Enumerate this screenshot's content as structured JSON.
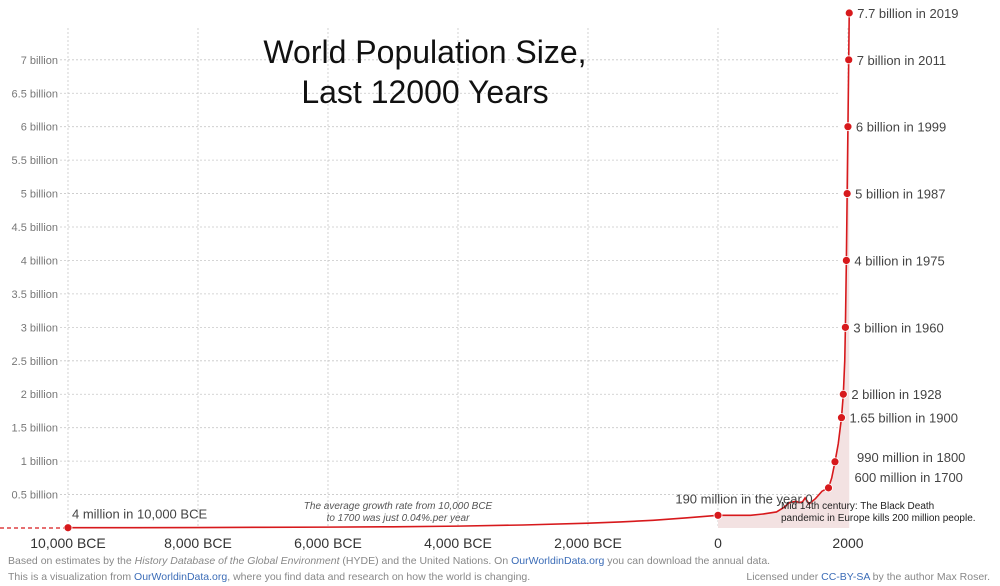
{
  "chart_data": {
    "type": "line",
    "title_lines": [
      "World Population Size,",
      "Last 12000 Years"
    ],
    "xlim": [
      -10400,
      2019
    ],
    "ylim": [
      0,
      7.7
    ],
    "x_ticks": [
      {
        "value": -10000,
        "label": "10,000 BCE"
      },
      {
        "value": -8000,
        "label": "8,000 BCE"
      },
      {
        "value": -6000,
        "label": "6,000 BCE"
      },
      {
        "value": -4000,
        "label": "4,000 BCE"
      },
      {
        "value": -2000,
        "label": "2,000 BCE"
      },
      {
        "value": 0,
        "label": "0"
      },
      {
        "value": 2000,
        "label": "2000"
      }
    ],
    "y_ticks": [
      {
        "value": 0.5,
        "label": "0.5 billion"
      },
      {
        "value": 1,
        "label": "1 billion"
      },
      {
        "value": 1.5,
        "label": "1.5 billion"
      },
      {
        "value": 2,
        "label": "2 billion"
      },
      {
        "value": 2.5,
        "label": "2.5 billion"
      },
      {
        "value": 3,
        "label": "3 billion"
      },
      {
        "value": 3.5,
        "label": "3.5  billion"
      },
      {
        "value": 4,
        "label": "4 billion"
      },
      {
        "value": 4.5,
        "label": "4.5 billion"
      },
      {
        "value": 5,
        "label": "5 billion"
      },
      {
        "value": 5.5,
        "label": "5.5 billion"
      },
      {
        "value": 6,
        "label": "6 billion"
      },
      {
        "value": 6.5,
        "label": "6.5 billion"
      },
      {
        "value": 7,
        "label": "7 billion"
      }
    ],
    "series": [
      {
        "color": "#d7191c",
        "x": [
          -10000,
          -9000,
          -8000,
          -7000,
          -6000,
          -5000,
          -4000,
          -3000,
          -2000,
          -1500,
          -1000,
          -500,
          0,
          500,
          700,
          900,
          1000,
          1100,
          1200,
          1250,
          1300,
          1340,
          1400,
          1500,
          1600,
          1700,
          1750,
          1800,
          1850,
          1900,
          1928,
          1950,
          1960,
          1975,
          1987,
          1999,
          2011,
          2019
        ],
        "y": [
          0.004,
          0.005,
          0.007,
          0.01,
          0.013,
          0.018,
          0.028,
          0.045,
          0.072,
          0.09,
          0.115,
          0.15,
          0.19,
          0.19,
          0.21,
          0.24,
          0.3,
          0.38,
          0.4,
          0.38,
          0.39,
          0.45,
          0.36,
          0.44,
          0.55,
          0.6,
          0.75,
          0.99,
          1.26,
          1.65,
          2.0,
          2.5,
          3.0,
          4.0,
          5.0,
          6.0,
          7.0,
          7.7
        ]
      }
    ],
    "point_labels": [
      {
        "x": -10000,
        "y": 0.004,
        "text": "4 million in 10,000 BCE",
        "pos": "right-above"
      },
      {
        "x": 0,
        "y": 0.19,
        "text": "190 million in the year 0",
        "pos": "above"
      },
      {
        "x": 1700,
        "y": 0.6,
        "text": "600 million in 1700",
        "pos": "right"
      },
      {
        "x": 1800,
        "y": 0.99,
        "text": "990 million in 1800",
        "pos": "right"
      },
      {
        "x": 1900,
        "y": 1.65,
        "text": "1.65 billion in 1900",
        "pos": "right"
      },
      {
        "x": 1928,
        "y": 2.0,
        "text": "2 billion in 1928",
        "pos": "right"
      },
      {
        "x": 1960,
        "y": 3.0,
        "text": "3 billion in 1960",
        "pos": "right"
      },
      {
        "x": 1975,
        "y": 4.0,
        "text": "4 billion in 1975",
        "pos": "right"
      },
      {
        "x": 1987,
        "y": 5.0,
        "text": "5 billion in 1987",
        "pos": "right"
      },
      {
        "x": 1999,
        "y": 6.0,
        "text": "6 billion in 1999",
        "pos": "right"
      },
      {
        "x": 2011,
        "y": 7.0,
        "text": "7 billion in 2011",
        "pos": "right"
      },
      {
        "x": 2019,
        "y": 7.7,
        "text": "7.7 billion in 2019",
        "pos": "right"
      }
    ],
    "annotations": [
      {
        "lines": [
          "The average growth rate from 10,000 BCE",
          "to 1700 was just  0.04%.per year"
        ],
        "style": "italic"
      },
      {
        "lines": [
          "Mid 14th century: The Black Death",
          "pandemic in Europe kills 200 million people."
        ],
        "style": "normal"
      }
    ],
    "grid": true
  },
  "footer": {
    "line1_a": "Based on estimates by the ",
    "line1_b": "History Database of the Global Environment",
    "line1_c": " (HYDE) and the United Nations. On ",
    "line1_link": "OurWorldinData.org",
    "line1_d": " you can download the annual data.",
    "line2_a": "This is a visualization from ",
    "line2_link": "OurWorldinData.org",
    "line2_b": ", where you find data and research on how the world is changing.",
    "license_a": "Licensed under ",
    "license_link": "CC-BY-SA",
    "license_b": " by the author Max Roser."
  }
}
